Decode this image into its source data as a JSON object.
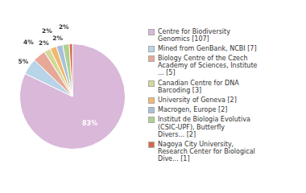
{
  "chart_data": {
    "type": "pie",
    "categories": [
      "Centre for Biodiversity\nGenomics [107]",
      "Mined from GenBank, NCBI [7]",
      "Biology Centre of the Czech\nAcademy of Sciences, Institute\n... [5]",
      "Canadian Centre for DNA\nBarcoding [3]",
      "University of Geneva [2]",
      "Macrogen, Europe [2]",
      "Institut de Biologia Evolutiva\n(CSIC-UPF), Butterfly\nDivers... [2]",
      "Nagoya City University,\nResearch Center for Biological\nDive... [1]"
    ],
    "values": [
      83,
      5,
      4,
      2,
      2,
      2,
      2,
      1
    ],
    "value_labels": [
      "83%",
      "5%",
      "4%",
      "2%",
      "2%",
      "2%",
      "2%",
      null
    ],
    "colors": [
      "#d9b8d9",
      "#b8d4e8",
      "#e8a898",
      "#d4d898",
      "#f0b870",
      "#a8c0d8",
      "#b0d090",
      "#d86848"
    ],
    "data_labels": true,
    "legend": "right"
  }
}
